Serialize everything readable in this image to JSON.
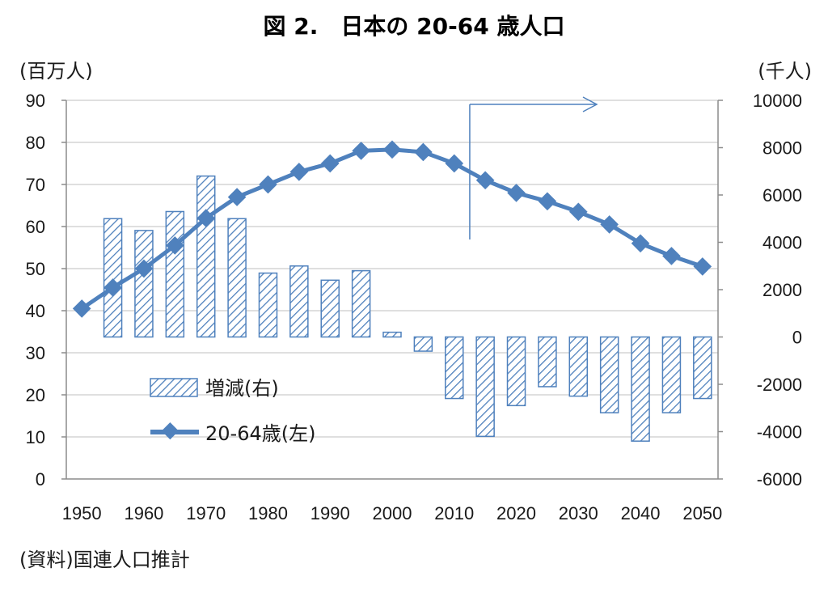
{
  "chart_data": {
    "type": "bar+line",
    "title": "図 2.　日本の 20-64 歳人口",
    "left_unit": "(百万人)",
    "right_unit": "(千人)",
    "source": "(資料)国連人口推計",
    "colors": {
      "line": "#4f81bd",
      "bar_hatch": "#4f81bd",
      "bar_border": "#4f81bd",
      "grid": "#bfbfbf"
    },
    "x": [
      1950,
      1955,
      1960,
      1965,
      1970,
      1975,
      1980,
      1985,
      1990,
      1995,
      2000,
      2005,
      2010,
      2015,
      2020,
      2025,
      2030,
      2035,
      2040,
      2045,
      2050
    ],
    "x_tick_labels": [
      "1950",
      "1960",
      "1970",
      "1980",
      "1990",
      "2000",
      "2010",
      "2020",
      "2030",
      "2040",
      "2050"
    ],
    "left_axis": {
      "min": 0,
      "max": 90,
      "ticks": [
        "0",
        "10",
        "20",
        "30",
        "40",
        "50",
        "60",
        "70",
        "80",
        "90"
      ]
    },
    "right_axis": {
      "min": -6000,
      "max": 10000,
      "ticks": [
        "-6000",
        "-4000",
        "-2000",
        "0",
        "2000",
        "4000",
        "6000",
        "8000",
        "10000"
      ]
    },
    "series": [
      {
        "name": "20-64歳(左)",
        "type": "line",
        "axis": "left",
        "values": [
          40.5,
          45.5,
          50.0,
          55.5,
          62.0,
          67.0,
          70.0,
          73.0,
          75.0,
          78.0,
          78.3,
          77.7,
          75.0,
          71.0,
          68.0,
          66.0,
          63.5,
          60.5,
          56.0,
          53.0,
          50.5
        ]
      },
      {
        "name": "増減(右)",
        "type": "bar",
        "axis": "right",
        "x": [
          1955,
          1960,
          1965,
          1970,
          1975,
          1980,
          1985,
          1990,
          1995,
          2000,
          2005,
          2010,
          2015,
          2020,
          2025,
          2030,
          2035,
          2040,
          2045,
          2050
        ],
        "values": [
          5000,
          4500,
          5300,
          6800,
          5000,
          2700,
          3000,
          2400,
          2800,
          200,
          -600,
          -2600,
          -4200,
          -2900,
          -2100,
          -2500,
          -3200,
          -4400,
          -3200,
          -2600
        ]
      }
    ],
    "annotation": {
      "type": "arrow",
      "from_x": 2012.5,
      "note": "projection boundary"
    },
    "legend": {
      "placement": "center-left"
    },
    "grid": {
      "horizontal": true
    }
  }
}
